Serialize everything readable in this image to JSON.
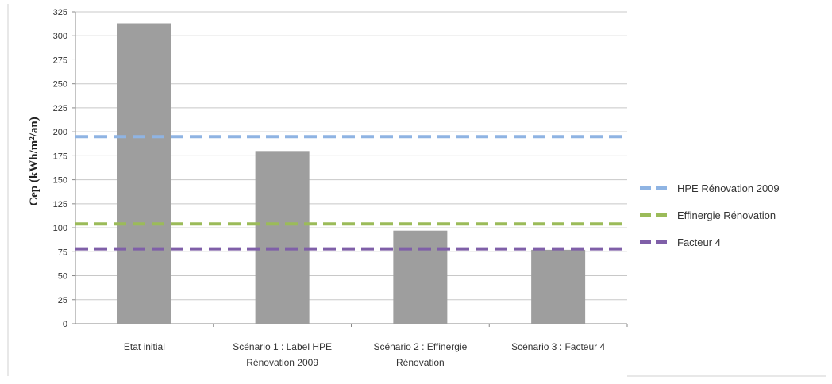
{
  "chart_data": {
    "type": "bar",
    "title": "",
    "xlabel": "",
    "ylabel": "Cep (kWh/m²/an)",
    "ylim": [
      0,
      325
    ],
    "yticks": [
      0,
      25,
      50,
      75,
      100,
      125,
      150,
      175,
      200,
      225,
      250,
      275,
      300,
      325
    ],
    "grid": true,
    "legend_position": "right",
    "categories": [
      [
        "Etat initial"
      ],
      [
        "Scénario 1 : Label HPE",
        "Rénovation 2009"
      ],
      [
        "Scénario 2 : Effinergie",
        "Rénovation"
      ],
      [
        "Scénario 3 : Facteur 4"
      ]
    ],
    "values": [
      313,
      180,
      97,
      77
    ],
    "bar_color": "#9e9e9e",
    "reference_lines": [
      {
        "name": "HPE Rénovation 2009",
        "value": 195,
        "color": "#8fb4e3"
      },
      {
        "name": "Effinergie Rénovation",
        "value": 104,
        "color": "#9bbb59"
      },
      {
        "name": "Facteur 4",
        "value": 78,
        "color": "#7f5fa8"
      }
    ]
  }
}
